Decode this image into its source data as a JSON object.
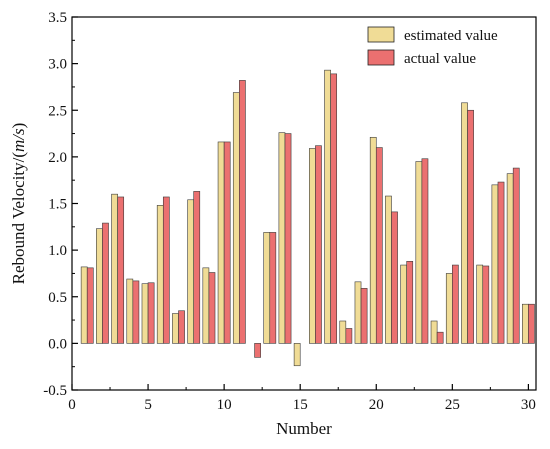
{
  "chart_data": {
    "type": "bar",
    "xlabel": "Number",
    "ylabel": "Rebound Velocity/(m/s)",
    "ylabel_parts": [
      "Rebound Velocity/(",
      "m/s",
      ")"
    ],
    "xlim": [
      0,
      30.5
    ],
    "ylim": [
      -0.5,
      3.5
    ],
    "xticks": [
      "0",
      "5",
      "10",
      "15",
      "20",
      "25",
      "30"
    ],
    "yticks": [
      "-0.5",
      "0.0",
      "0.5",
      "1.0",
      "1.5",
      "2.0",
      "2.5",
      "3.0",
      "3.5"
    ],
    "grid": false,
    "legend_position": "top-right",
    "x": [
      1,
      2,
      3,
      4,
      5,
      6,
      7,
      8,
      9,
      10,
      11,
      12,
      13,
      14,
      15,
      16,
      17,
      18,
      19,
      20,
      21,
      22,
      23,
      24,
      25,
      26,
      27,
      28,
      29,
      30
    ],
    "series": [
      {
        "name": "estimated value",
        "color": "#f0dc96",
        "values": [
          0.82,
          1.23,
          1.6,
          0.69,
          0.64,
          1.48,
          0.32,
          1.54,
          0.81,
          2.16,
          2.69,
          0.0,
          1.19,
          2.26,
          -0.24,
          2.09,
          2.93,
          0.24,
          0.66,
          2.21,
          1.58,
          0.84,
          1.95,
          0.24,
          0.75,
          2.58,
          0.84,
          1.7,
          1.82,
          0.42
        ]
      },
      {
        "name": "actual value",
        "color": "#eb7070",
        "values": [
          0.81,
          1.29,
          1.57,
          0.67,
          0.65,
          1.57,
          0.35,
          1.63,
          0.76,
          2.16,
          2.82,
          -0.15,
          1.19,
          2.25,
          0.0,
          2.12,
          2.89,
          0.16,
          0.59,
          2.1,
          1.41,
          0.88,
          1.98,
          0.12,
          0.84,
          2.5,
          0.83,
          1.73,
          1.88,
          0.42
        ]
      }
    ]
  }
}
